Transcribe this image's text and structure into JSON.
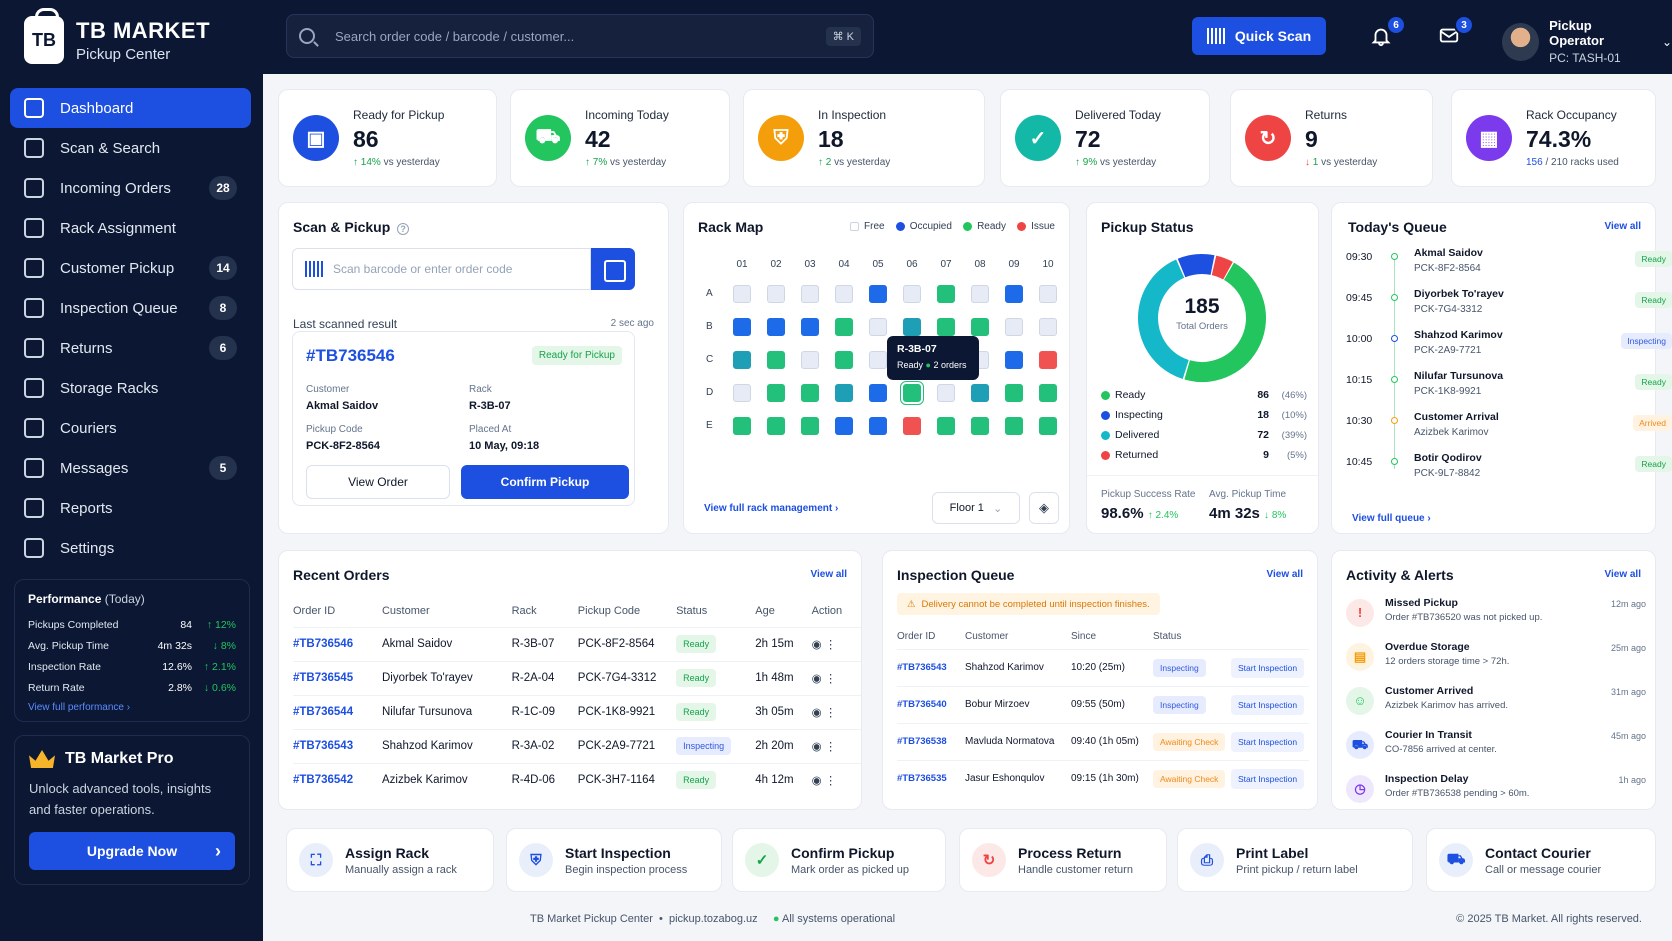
{
  "brand": {
    "name": "TB MARKET",
    "subtitle": "Pickup Center",
    "logo_text": "TB"
  },
  "nav": [
    {
      "label": "Dashboard",
      "badge": "",
      "active": true
    },
    {
      "label": "Scan & Search",
      "badge": ""
    },
    {
      "label": "Incoming Orders",
      "badge": "28"
    },
    {
      "label": "Rack Assignment",
      "badge": ""
    },
    {
      "label": "Customer Pickup",
      "badge": "14"
    },
    {
      "label": "Inspection Queue",
      "badge": "8"
    },
    {
      "label": "Returns",
      "badge": "6"
    },
    {
      "label": "Storage Racks",
      "badge": ""
    },
    {
      "label": "Couriers",
      "badge": ""
    },
    {
      "label": "Messages",
      "badge": "5"
    },
    {
      "label": "Reports",
      "badge": ""
    },
    {
      "label": "Settings",
      "badge": ""
    }
  ],
  "performance": {
    "title": "Performance",
    "period": "(Today)",
    "rows": [
      {
        "label": "Pickups Completed",
        "value": "84",
        "delta": "↑ 12%",
        "dir": "up"
      },
      {
        "label": "Avg. Pickup Time",
        "value": "4m 32s",
        "delta": "↓ 8%",
        "dir": "up"
      },
      {
        "label": "Inspection Rate",
        "value": "12.6%",
        "delta": "↑ 2.1%",
        "dir": "up"
      },
      {
        "label": "Return Rate",
        "value": "2.8%",
        "delta": "↓ 0.6%",
        "dir": "up"
      }
    ],
    "link": "View full performance ›"
  },
  "pro": {
    "title": "TB Market Pro",
    "text": "Unlock advanced tools, insights and faster operations.",
    "button": "Upgrade Now"
  },
  "topbar": {
    "search_placeholder": "Search order code / barcode / customer...",
    "shortcut": "⌘ K",
    "quick_scan": "Quick Scan",
    "notif_count": "6",
    "msg_count": "3",
    "user_name": "Pickup Operator",
    "user_pc": "PC: TASH-01"
  },
  "kpis": [
    {
      "label": "Ready for Pickup",
      "value": "86",
      "delta": "14%",
      "note": "vs yesterday",
      "color": "#1d4fe0",
      "icon": "bag"
    },
    {
      "label": "Incoming Today",
      "value": "42",
      "delta": "7%",
      "note": "vs yesterday",
      "color": "#22c55e",
      "icon": "truck"
    },
    {
      "label": "In Inspection",
      "value": "18",
      "delta": "2",
      "note": "vs yesterday",
      "color": "#f59e0b",
      "icon": "shield"
    },
    {
      "label": "Delivered Today",
      "value": "72",
      "delta": "9%",
      "note": "vs yesterday",
      "color": "#14b8a6",
      "icon": "check"
    },
    {
      "label": "Returns",
      "value": "9",
      "delta": "1",
      "note": "vs yesterday",
      "color": "#ef4444",
      "icon": "return"
    },
    {
      "label": "Rack Occupancy",
      "value": "74.3%",
      "delta": "156",
      "note": "/ 210 racks used",
      "color": "#7c3aed",
      "icon": "grid"
    }
  ],
  "scan": {
    "title": "Scan & Pickup",
    "placeholder": "Scan barcode or enter order code",
    "last_label": "Last scanned result",
    "last_time": "2 sec ago",
    "order": "#TB736546",
    "status": "Ready for Pickup",
    "customer_label": "Customer",
    "customer": "Akmal Saidov",
    "rack_label": "Rack",
    "rack": "R-3B-07",
    "code_label": "Pickup Code",
    "code": "PCK-8F2-8564",
    "placed_label": "Placed At",
    "placed": "10 May, 09:18",
    "view_btn": "View Order",
    "confirm_btn": "Confirm Pickup"
  },
  "rackmap": {
    "title": "Rack Map",
    "legend": [
      "Free",
      "Occupied",
      "Ready",
      "Issue"
    ],
    "cols": [
      "01",
      "02",
      "03",
      "04",
      "05",
      "06",
      "07",
      "08",
      "09",
      "10"
    ],
    "rows": [
      "A",
      "B",
      "C",
      "D",
      "E"
    ],
    "grid": [
      [
        "f",
        "f",
        "f",
        "f",
        "o",
        "f",
        "r",
        "f",
        "o",
        "f"
      ],
      [
        "o",
        "o",
        "o",
        "r",
        "f",
        "t",
        "r",
        "r",
        "f",
        "f"
      ],
      [
        "t",
        "r",
        "f",
        "r",
        "f",
        "t",
        "f",
        "f",
        "o",
        "i"
      ],
      [
        "f",
        "r",
        "r",
        "t",
        "o",
        "r",
        "f",
        "t",
        "r",
        "r"
      ],
      [
        "r",
        "r",
        "r",
        "o",
        "o",
        "i",
        "r",
        "r",
        "r",
        "r"
      ]
    ],
    "tooltip_title": "R-3B-07",
    "tooltip_status": "Ready",
    "tooltip_count": "2 orders",
    "link": "View full rack management ›",
    "floor": "Floor 1"
  },
  "pickup_status": {
    "title": "Pickup Status",
    "total": "185",
    "total_label": "Total Orders",
    "items": [
      {
        "label": "Ready",
        "value": "86",
        "pct": "(46%)",
        "color": "#22c55e",
        "n": 86
      },
      {
        "label": "Inspecting",
        "value": "18",
        "pct": "(10%)",
        "color": "#1d4fe0",
        "n": 18
      },
      {
        "label": "Delivered",
        "value": "72",
        "pct": "(39%)",
        "color": "#14b8c8",
        "n": 72
      },
      {
        "label": "Returned",
        "value": "9",
        "pct": "(5%)",
        "color": "#ef4444",
        "n": 9
      }
    ],
    "success_label": "Pickup Success Rate",
    "success": "98.6%",
    "success_delta": "↑ 2.4%",
    "avg_label": "Avg. Pickup Time",
    "avg": "4m 32s",
    "avg_delta": "↓ 8%"
  },
  "queue": {
    "title": "Today's Queue",
    "view_all": "View all",
    "link": "View full queue ›",
    "items": [
      {
        "time": "09:30",
        "name": "Akmal Saidov",
        "code": "PCK-8F2-8564",
        "status": "Ready",
        "kind": "ready"
      },
      {
        "time": "09:45",
        "name": "Diyorbek To'rayev",
        "code": "PCK-7G4-3312",
        "status": "Ready",
        "kind": "ready"
      },
      {
        "time": "10:00",
        "name": "Shahzod Karimov",
        "code": "PCK-2A9-7721",
        "status": "Inspecting",
        "kind": "insp"
      },
      {
        "time": "10:15",
        "name": "Nilufar Tursunova",
        "code": "PCK-1K8-9921",
        "status": "Ready",
        "kind": "ready"
      },
      {
        "time": "10:30",
        "name": "Customer Arrival",
        "code": "Azizbek Karimov",
        "status": "Arrived",
        "kind": "arr"
      },
      {
        "time": "10:45",
        "name": "Botir Qodirov",
        "code": "PCK-9L7-8842",
        "status": "Ready",
        "kind": "ready"
      }
    ]
  },
  "recent": {
    "title": "Recent Orders",
    "view_all": "View all",
    "headers": [
      "Order ID",
      "Customer",
      "Rack",
      "Pickup Code",
      "Status",
      "Age",
      "Action"
    ],
    "rows": [
      {
        "id": "#TB736546",
        "customer": "Akmal Saidov",
        "rack": "R-3B-07",
        "code": "PCK-8F2-8564",
        "status": "Ready",
        "kind": "ready",
        "age": "2h 15m"
      },
      {
        "id": "#TB736545",
        "customer": "Diyorbek To'rayev",
        "rack": "R-2A-04",
        "code": "PCK-7G4-3312",
        "status": "Ready",
        "kind": "ready",
        "age": "1h 48m"
      },
      {
        "id": "#TB736544",
        "customer": "Nilufar Tursunova",
        "rack": "R-1C-09",
        "code": "PCK-1K8-9921",
        "status": "Ready",
        "kind": "ready",
        "age": "3h 05m"
      },
      {
        "id": "#TB736543",
        "customer": "Shahzod Karimov",
        "rack": "R-3A-02",
        "code": "PCK-2A9-7721",
        "status": "Inspecting",
        "kind": "insp",
        "age": "2h 20m"
      },
      {
        "id": "#TB736542",
        "customer": "Azizbek Karimov",
        "rack": "R-4D-06",
        "code": "PCK-3H7-1164",
        "status": "Ready",
        "kind": "ready",
        "age": "4h 12m"
      }
    ]
  },
  "inspection": {
    "title": "Inspection Queue",
    "view_all": "View all",
    "warning": "Delivery cannot be completed until inspection finishes.",
    "headers": [
      "Order ID",
      "Customer",
      "Since",
      "Status"
    ],
    "rows": [
      {
        "id": "#TB736543",
        "customer": "Shahzod Karimov",
        "since": "10:20 (25m)",
        "status": "Inspecting",
        "kind": "insp",
        "action": "Start Inspection"
      },
      {
        "id": "#TB736540",
        "customer": "Bobur Mirzoev",
        "since": "09:55 (50m)",
        "status": "Inspecting",
        "kind": "insp",
        "action": "Start Inspection"
      },
      {
        "id": "#TB736538",
        "customer": "Mavluda Normatova",
        "since": "09:40 (1h 05m)",
        "status": "Awaiting Check",
        "kind": "await",
        "action": "Start Inspection"
      },
      {
        "id": "#TB736535",
        "customer": "Jasur Eshonqulov",
        "since": "09:15 (1h 30m)",
        "status": "Awaiting Check",
        "kind": "await",
        "action": "Start Inspection"
      }
    ]
  },
  "activity": {
    "title": "Activity & Alerts",
    "view_all": "View all",
    "items": [
      {
        "title": "Missed Pickup",
        "text": "Order #TB736520 was not picked up.",
        "time": "12m ago",
        "color": "#ef4444",
        "bg": "#fde8e8"
      },
      {
        "title": "Overdue Storage",
        "text": "12 orders storage time > 72h.",
        "time": "25m ago",
        "color": "#f59e0b",
        "bg": "#fef3e0"
      },
      {
        "title": "Customer Arrived",
        "text": "Azizbek Karimov has arrived.",
        "time": "31m ago",
        "color": "#22c55e",
        "bg": "#e3f6e8"
      },
      {
        "title": "Courier In Transit",
        "text": "CO-7856 arrived at center.",
        "time": "45m ago",
        "color": "#1d4fe0",
        "bg": "#e6ecfe"
      },
      {
        "title": "Inspection Delay",
        "text": "Order #TB736538 pending > 60m.",
        "time": "1h ago",
        "color": "#7c3aed",
        "bg": "#efe8fd"
      }
    ]
  },
  "actions": [
    {
      "title": "Assign Rack",
      "sub": "Manually assign a rack"
    },
    {
      "title": "Start Inspection",
      "sub": "Begin inspection process"
    },
    {
      "title": "Confirm Pickup",
      "sub": "Mark order as picked up"
    },
    {
      "title": "Process Return",
      "sub": "Handle customer return"
    },
    {
      "title": "Print Label",
      "sub": "Print pickup / return label"
    },
    {
      "title": "Contact Courier",
      "sub": "Call or message courier"
    }
  ],
  "footer": {
    "left": "TB Market Pickup Center",
    "url": "pickup.tozabog.uz",
    "status": "All systems operational",
    "copy": "© 2025 TB Market. All rights reserved."
  }
}
